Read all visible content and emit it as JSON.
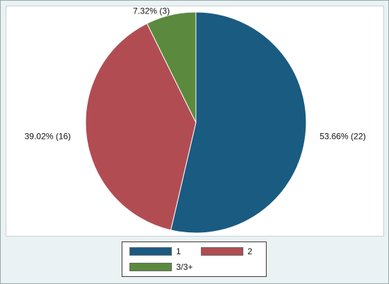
{
  "chart_data": {
    "type": "pie",
    "slices": [
      {
        "name": "1",
        "value": 22,
        "percent": 53.66,
        "label": "53.66% (22)",
        "color": "#1a5b82"
      },
      {
        "name": "2",
        "value": 16,
        "percent": 39.02,
        "label": "39.02% (16)",
        "color": "#b24c53"
      },
      {
        "name": "3/3+",
        "value": 3,
        "percent": 7.32,
        "label": "7.32% (3)",
        "color": "#5b8a3e"
      }
    ],
    "start": "12 o'clock",
    "direction": "clockwise",
    "legend": {
      "position": "bottom",
      "columns": 2
    },
    "title": ""
  }
}
